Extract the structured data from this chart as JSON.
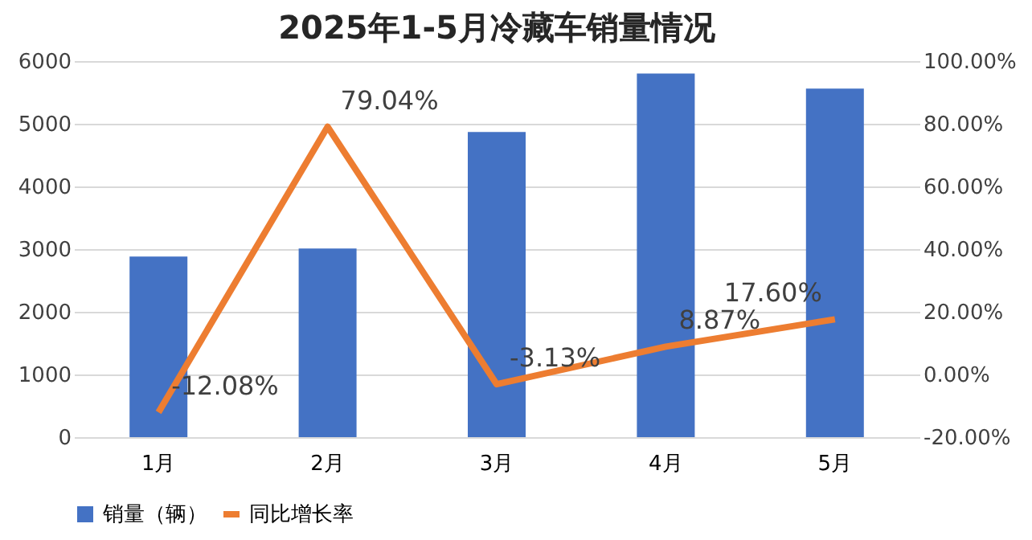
{
  "chart_data": {
    "type": "bar",
    "title": "2025年1-5月冷藏车销量情况",
    "categories": [
      "1月",
      "2月",
      "3月",
      "4月",
      "5月"
    ],
    "series": [
      {
        "name": "销量（辆）",
        "color": "#4472c4",
        "values": [
          2880,
          3010,
          4870,
          5800,
          5560
        ]
      },
      {
        "name": "同比增长率",
        "type": "line",
        "axis": "y2",
        "color": "#ed7d31",
        "values": [
          -12.08,
          79.04,
          -3.13,
          8.87,
          17.6
        ],
        "value_labels": [
          "-12.08%",
          "79.04%",
          "-3.13%",
          "8.87%",
          "17.60%"
        ]
      }
    ],
    "ylim": [
      0,
      6000
    ],
    "yticks": [
      0,
      1000,
      2000,
      3000,
      4000,
      5000,
      6000
    ],
    "y2lim": [
      -20,
      100
    ],
    "y2ticks": [
      {
        "value": -20,
        "label": "-20.00%"
      },
      {
        "value": 0,
        "label": "0.00%"
      },
      {
        "value": 20,
        "label": "20.00%"
      },
      {
        "value": 40,
        "label": "40.00%"
      },
      {
        "value": 60,
        "label": "60.00%"
      },
      {
        "value": 80,
        "label": "80.00%"
      },
      {
        "value": 100,
        "label": "100.00%"
      }
    ],
    "grid": "y",
    "legend": "bottom",
    "marker": "none",
    "line_style": "solid"
  }
}
